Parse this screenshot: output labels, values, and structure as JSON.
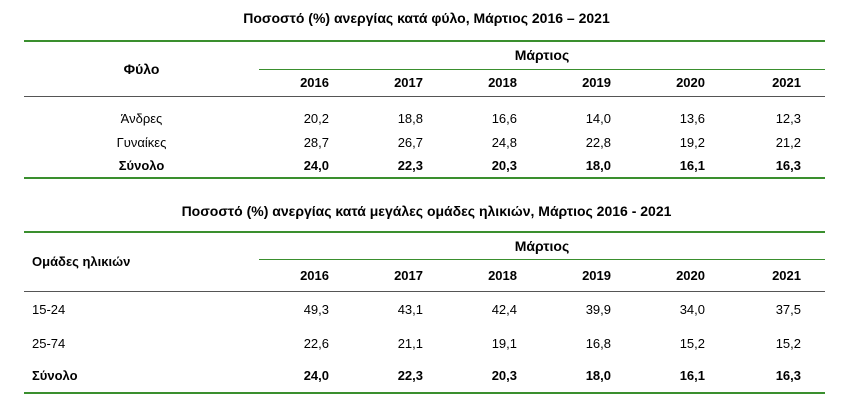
{
  "table1": {
    "title": "Ποσοστό (%) ανεργίας κατά φύλο, Μάρτιος 2016 – 2021",
    "row_header": "Φύλο",
    "group_header": "Μάρτιος",
    "years": [
      "2016",
      "2017",
      "2018",
      "2019",
      "2020",
      "2021"
    ],
    "rows": [
      {
        "label": "Άνδρες",
        "values": [
          "20,2",
          "18,8",
          "16,6",
          "14,0",
          "13,6",
          "12,3"
        ]
      },
      {
        "label": "Γυναίκες",
        "values": [
          "28,7",
          "26,7",
          "24,8",
          "22,8",
          "19,2",
          "21,2"
        ]
      },
      {
        "label": "Σύνολο",
        "values": [
          "24,0",
          "22,3",
          "20,3",
          "18,0",
          "16,1",
          "16,3"
        ]
      }
    ]
  },
  "table2": {
    "title": "Ποσοστό (%) ανεργίας κατά μεγάλες ομάδες ηλικιών, Μάρτιος 2016 - 2021",
    "row_header": "Ομάδες ηλικιών",
    "group_header": "Μάρτιος",
    "years": [
      "2016",
      "2017",
      "2018",
      "2019",
      "2020",
      "2021"
    ],
    "rows": [
      {
        "label": "15-24",
        "values": [
          "49,3",
          "43,1",
          "42,4",
          "39,9",
          "34,0",
          "37,5"
        ]
      },
      {
        "label": "25-74",
        "values": [
          "22,6",
          "21,1",
          "19,1",
          "16,8",
          "15,2",
          "15,2"
        ]
      },
      {
        "label": "Σύνολο",
        "values": [
          "24,0",
          "22,3",
          "20,3",
          "18,0",
          "16,1",
          "16,3"
        ]
      }
    ]
  },
  "colors": {
    "accent_green": "#3a8f2e"
  }
}
